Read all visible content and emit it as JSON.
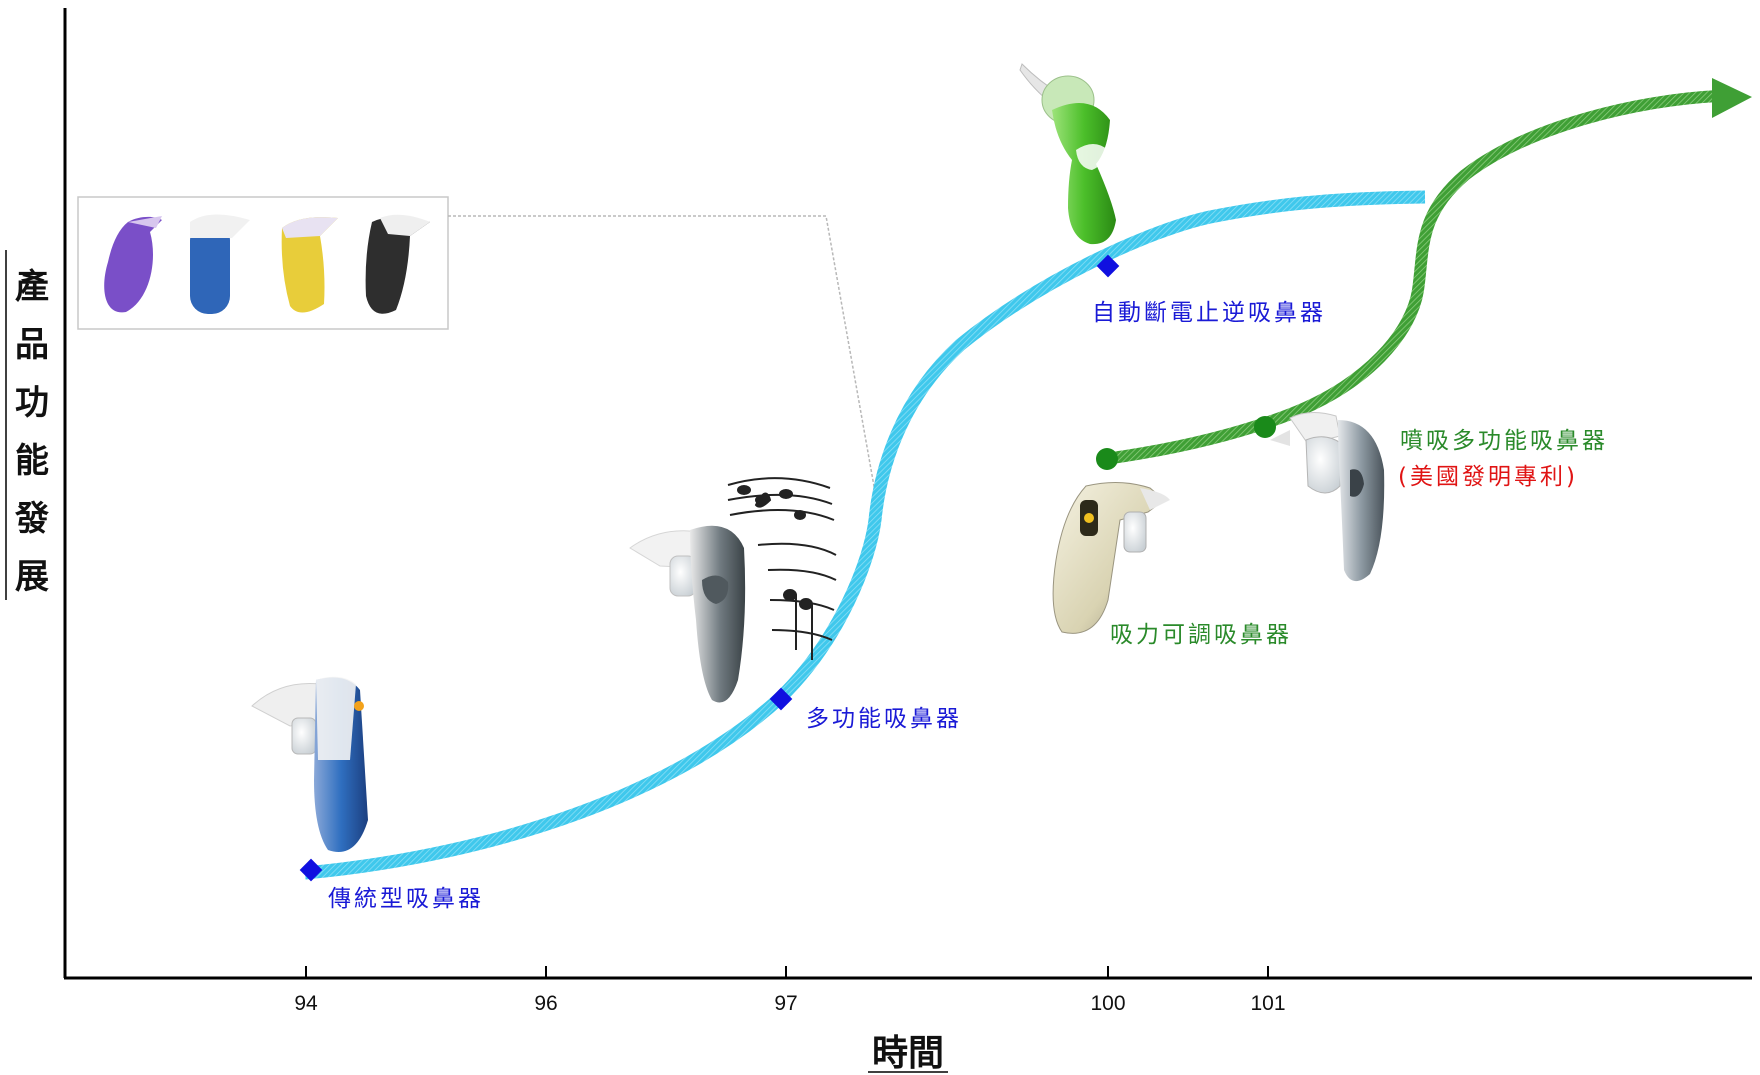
{
  "y_axis_title": "產品功能發展",
  "x_axis_title": "時間",
  "x_ticks": [
    "94",
    "96",
    "97",
    "100",
    "101"
  ],
  "blue_milestones": [
    {
      "label": "傳統型吸鼻器",
      "year": "94"
    },
    {
      "label": "多功能吸鼻器",
      "year": "97"
    },
    {
      "label": "自動斷電止逆吸鼻器",
      "year": "100"
    }
  ],
  "green_milestones": [
    {
      "label": "吸力可調吸鼻器",
      "year": "100"
    },
    {
      "label": "噴吸多功能吸鼻器",
      "note": "(美國發明專利)",
      "year": "101"
    }
  ],
  "colors": {
    "blue_curve": "#3fc8ec",
    "blue_marker": "#1010e0",
    "green_curve": "#4aaa3c",
    "green_marker": "#1a8a1a",
    "blue_text": "#1a1ad6",
    "green_text": "#2a8a2a",
    "red_text": "#e01414"
  },
  "product_images": [
    "traditional-aspirator-blue",
    "multifunction-aspirator-gray",
    "auto-shutoff-aspirator-green",
    "adjustable-suction-aspirator-cream",
    "spray-suction-aspirator-gray",
    "color-variants-purple-blue-yellow-black"
  ],
  "decorations": [
    "music-notes-icon"
  ]
}
